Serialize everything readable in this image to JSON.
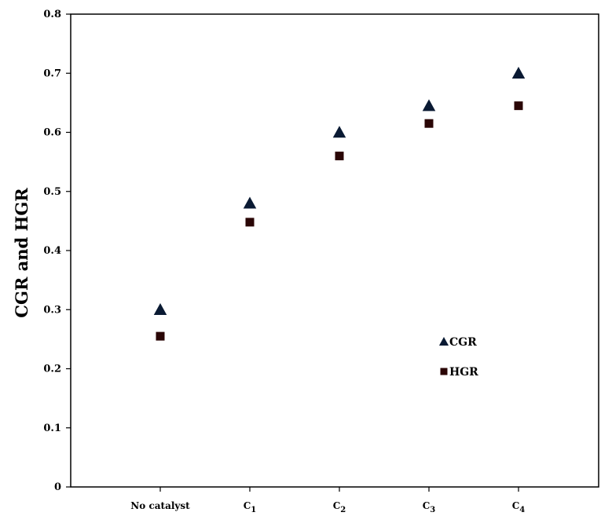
{
  "chart_data": {
    "type": "scatter",
    "title": "",
    "xlabel": "",
    "ylabel": "CGR and HGR",
    "categories": [
      {
        "main": "No catalyst",
        "sub": ""
      },
      {
        "main": "C",
        "sub": "1"
      },
      {
        "main": "C",
        "sub": "2"
      },
      {
        "main": "C",
        "sub": "3"
      },
      {
        "main": "C",
        "sub": "4"
      }
    ],
    "ylim": [
      0,
      0.8
    ],
    "yticks": [
      "0",
      "0.1",
      "0.2",
      "0.3",
      "0.4",
      "0.5",
      "0.6",
      "0.7",
      "0.8"
    ],
    "grid": false,
    "legend_position": "right",
    "series": [
      {
        "name": "CGR",
        "marker": "triangle",
        "color": "#0a1a33",
        "values": [
          0.3,
          0.48,
          0.6,
          0.645,
          0.7
        ]
      },
      {
        "name": "HGR",
        "marker": "square",
        "color": "#2a0606",
        "values": [
          0.255,
          0.448,
          0.56,
          0.615,
          0.645
        ]
      }
    ]
  }
}
